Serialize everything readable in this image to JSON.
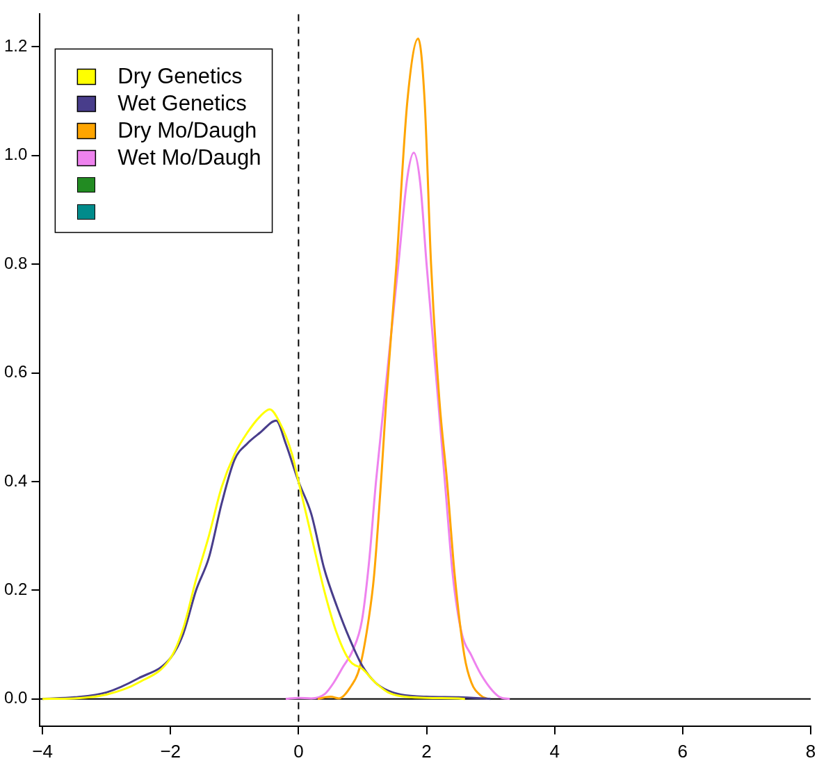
{
  "chart_data": {
    "type": "line",
    "xlim": [
      -4.04,
      8
    ],
    "ylim": [
      -0.05,
      1.26
    ],
    "xticks": [
      {
        "value": -4,
        "label": "−4"
      },
      {
        "value": -2,
        "label": "−2"
      },
      0,
      2,
      4,
      6,
      8
    ],
    "yticks": [
      {
        "value": 0,
        "label": "0.0"
      },
      0.2,
      0.4,
      0.6,
      0.8,
      {
        "value": 1,
        "label": "1.0"
      },
      1.2
    ],
    "legend": "top left",
    "marker": "none",
    "grid": false,
    "ref_lines": [
      {
        "axis": "x",
        "value": 0,
        "line_style": "dashed",
        "color": "#000000"
      },
      {
        "axis": "y",
        "value": 0,
        "line_style": "solid",
        "color": "#000000"
      }
    ],
    "series": [
      {
        "name": "Dry Genetics",
        "color": "#ffff00",
        "x": [
          -4.0,
          -3.5,
          -3.0,
          -2.5,
          -2.0,
          -1.8,
          -1.6,
          -1.4,
          -1.2,
          -1.0,
          -0.8,
          -0.6,
          -0.45,
          -0.3,
          -0.1,
          0.0,
          0.2,
          0.4,
          0.6,
          0.8,
          1.0,
          1.2,
          1.4,
          1.6,
          2.0,
          2.5,
          2.6
        ],
        "values": [
          0,
          0.001,
          0.008,
          0.03,
          0.075,
          0.13,
          0.22,
          0.3,
          0.39,
          0.45,
          0.49,
          0.52,
          0.533,
          0.51,
          0.45,
          0.4,
          0.3,
          0.2,
          0.12,
          0.07,
          0.055,
          0.03,
          0.012,
          0.005,
          0.002,
          0.001,
          0
        ]
      },
      {
        "name": "Wet Genetics",
        "color": "#483d8b",
        "x": [
          -4.0,
          -3.5,
          -3.0,
          -2.5,
          -2.0,
          -1.8,
          -1.6,
          -1.4,
          -1.2,
          -1.0,
          -0.8,
          -0.6,
          -0.35,
          -0.2,
          0.0,
          0.2,
          0.4,
          0.6,
          0.8,
          1.0,
          1.2,
          1.4,
          1.6,
          2.0,
          2.5,
          3.0
        ],
        "values": [
          0,
          0.003,
          0.012,
          0.038,
          0.075,
          0.12,
          0.2,
          0.26,
          0.36,
          0.44,
          0.47,
          0.49,
          0.512,
          0.47,
          0.4,
          0.34,
          0.24,
          0.17,
          0.11,
          0.06,
          0.03,
          0.015,
          0.008,
          0.004,
          0.003,
          0
        ]
      },
      {
        "name": "Dry Mo/Daugh",
        "color": "#ffa500",
        "x": [
          0.3,
          0.5,
          0.63,
          0.8,
          0.96,
          1.1,
          1.18,
          1.3,
          1.37,
          1.53,
          1.7,
          1.87,
          1.97,
          2.07,
          2.2,
          2.32,
          2.44,
          2.59,
          2.7,
          2.85,
          2.95
        ],
        "values": [
          0,
          0.004,
          0.001,
          0.02,
          0.06,
          0.15,
          0.227,
          0.42,
          0.55,
          0.8,
          1.1,
          1.215,
          1.1,
          0.8,
          0.55,
          0.4,
          0.227,
          0.08,
          0.03,
          0.006,
          0
        ]
      },
      {
        "name": "Wet Mo/Daugh",
        "color": "#ee82ee",
        "x": [
          -0.2,
          0.0,
          0.2,
          0.41,
          0.55,
          0.7,
          0.85,
          0.99,
          1.1,
          1.21,
          1.34,
          1.56,
          1.7,
          1.8,
          1.9,
          2.0,
          2.18,
          2.3,
          2.41,
          2.55,
          2.7,
          2.85,
          3.03,
          3.15,
          3.3
        ],
        "values": [
          0,
          0.002,
          0.001,
          0.009,
          0.03,
          0.06,
          0.09,
          0.144,
          0.25,
          0.4,
          0.55,
          0.8,
          0.96,
          1.005,
          0.95,
          0.8,
          0.55,
          0.38,
          0.227,
          0.12,
          0.08,
          0.045,
          0.015,
          0.003,
          0
        ]
      }
    ]
  }
}
